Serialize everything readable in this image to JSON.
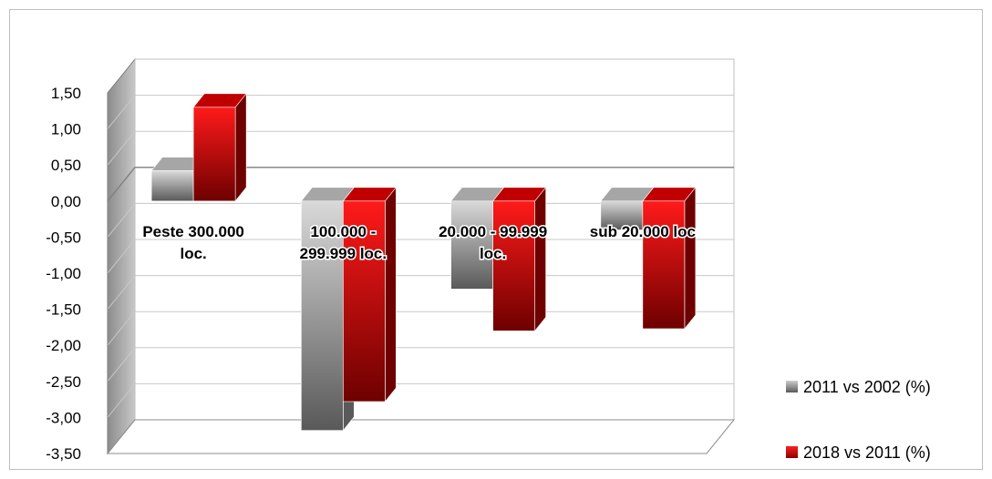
{
  "chart_data": {
    "type": "bar",
    "categories": [
      [
        "Peste 300.000",
        "loc."
      ],
      [
        "100.000 -",
        "299.999 loc."
      ],
      [
        "20.000 - 99.999",
        "loc."
      ],
      [
        "sub 20.000 loc"
      ]
    ],
    "series": [
      {
        "name": "2011 vs 2002 (%)",
        "values": [
          0.42,
          -3.18,
          -1.22,
          -0.4
        ],
        "color": "#808080"
      },
      {
        "name": "2018 vs 2011 (%)",
        "values": [
          1.3,
          -2.78,
          -1.8,
          -1.77
        ],
        "color": "#e00000"
      }
    ],
    "ylim": [
      -3.5,
      1.5
    ],
    "yticks": [
      "1,50",
      "1,00",
      "0,50",
      "0,00",
      "-0,50",
      "-1,00",
      "-1,50",
      "-2,00",
      "-2,50",
      "-3,00",
      "-3,50"
    ],
    "title": "",
    "xlabel": "",
    "ylabel": "",
    "grid": true,
    "legend_position": "right",
    "style": "3d-clustered-column"
  }
}
